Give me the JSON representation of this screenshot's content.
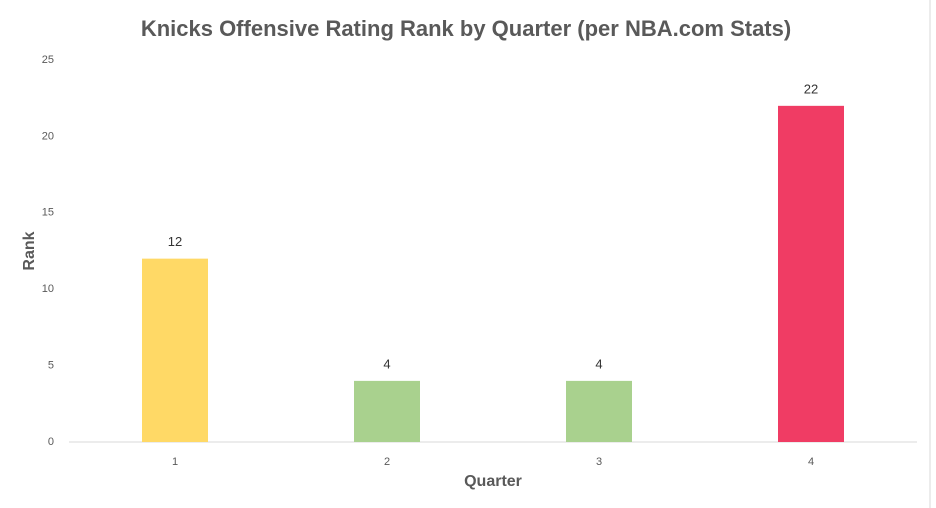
{
  "chart_data": {
    "type": "bar",
    "title": "Knicks Offensive Rating Rank by Quarter (per NBA.com Stats)",
    "x_label": "Quarter",
    "y_label": "Rank",
    "categories": [
      "1",
      "2",
      "3",
      "4"
    ],
    "values": [
      12,
      4,
      4,
      22
    ],
    "colors": [
      "#ffd966",
      "#a9d18e",
      "#a9d18e",
      "#f03c64"
    ],
    "ylim": [
      0,
      25
    ],
    "yticks": [
      0,
      5,
      10,
      15,
      20,
      25
    ],
    "grid": false
  }
}
